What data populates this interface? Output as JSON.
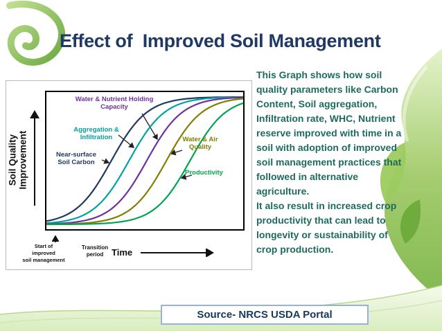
{
  "slide": {
    "title": "Effect of  Improved Soil Management",
    "description": {
      "para1": "This Graph shows how soil quality parameters like Carbon Content, Soil aggregation, Infiltration rate, WHC, Nutrient reserve improved with time in a soil with adoption of improved soil management practices that followed in alternative agriculture.",
      "para2": "It also result in increased crop productivity that can lead to longevity or sustainability of crop production."
    },
    "source_label": "Source- NRCS USDA Portal"
  },
  "colors": {
    "title": "#1F3864",
    "body_text": "#1E6B5E",
    "source_text": "#17375E",
    "source_border": "#95B3D7",
    "decoration_green": "#7AB648"
  },
  "chart_data": {
    "type": "line",
    "curve_shape": "sigmoid",
    "xlabel": "Time",
    "ylabel": "Soil Quality\nImprovement",
    "x_axis_numeric": false,
    "y_axis_numeric": false,
    "grid": false,
    "steepness": 11,
    "annotations": {
      "start": "Start of\nimproved\nsoil management",
      "transition": "Transition\nperiod"
    },
    "series": [
      {
        "name": "Near-surface Soil Carbon",
        "color": "#1F3864",
        "transition_midpoint": 0.33
      },
      {
        "name": "Aggregation & Infiltration",
        "color": "#00A3A3",
        "transition_midpoint": 0.42
      },
      {
        "name": "Water & Nutrient Holding Capacity",
        "color": "#7030A0",
        "transition_midpoint": 0.51
      },
      {
        "name": "Water & Air Quality",
        "color": "#7F7F00",
        "transition_midpoint": 0.61
      },
      {
        "name": "Productivity",
        "color": "#00A550",
        "transition_midpoint": 0.73
      }
    ]
  }
}
